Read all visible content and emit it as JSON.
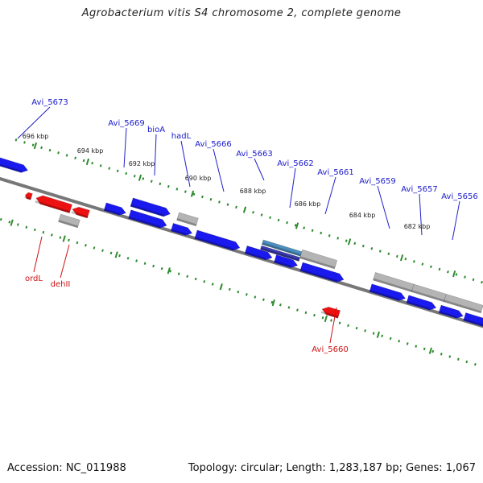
{
  "title": "Agrobacterium vitis S4 chromosome 2, complete genome",
  "footer": {
    "accession": "Accession: NC_011988",
    "summary": "Topology: circular; Length: 1,283,187 bp; Genes: 1,067"
  },
  "colors": {
    "forward_gene": "#1a1aee",
    "reverse_gene": "#ee1111",
    "other_feature": "#b4b4b4",
    "highlight_feature": "#4a8fbf",
    "tick": "#2e8b2e",
    "backbone": "#777777",
    "forward_label": "#1a1acc",
    "reverse_label": "#cc1111"
  },
  "scale_labels": [
    "696 kbp",
    "694 kbp",
    "692 kbp",
    "690 kbp",
    "688 kbp",
    "686 kbp",
    "684 kbp",
    "682 kbp"
  ],
  "gene_labels": [
    {
      "text": "Avi_5673",
      "strand": "forward"
    },
    {
      "text": "Avi_5669",
      "strand": "forward"
    },
    {
      "text": "bioA",
      "strand": "forward"
    },
    {
      "text": "hadL",
      "strand": "forward"
    },
    {
      "text": "Avi_5666",
      "strand": "forward"
    },
    {
      "text": "Avi_5663",
      "strand": "forward"
    },
    {
      "text": "Avi_5662",
      "strand": "forward"
    },
    {
      "text": "Avi_5661",
      "strand": "forward"
    },
    {
      "text": "Avi_5659",
      "strand": "forward"
    },
    {
      "text": "Avi_5657",
      "strand": "forward"
    },
    {
      "text": "Avi_5656",
      "strand": "forward"
    },
    {
      "text": "ordL",
      "strand": "reverse"
    },
    {
      "text": "dehII",
      "strand": "reverse"
    },
    {
      "text": "Avi_5660",
      "strand": "reverse"
    }
  ]
}
